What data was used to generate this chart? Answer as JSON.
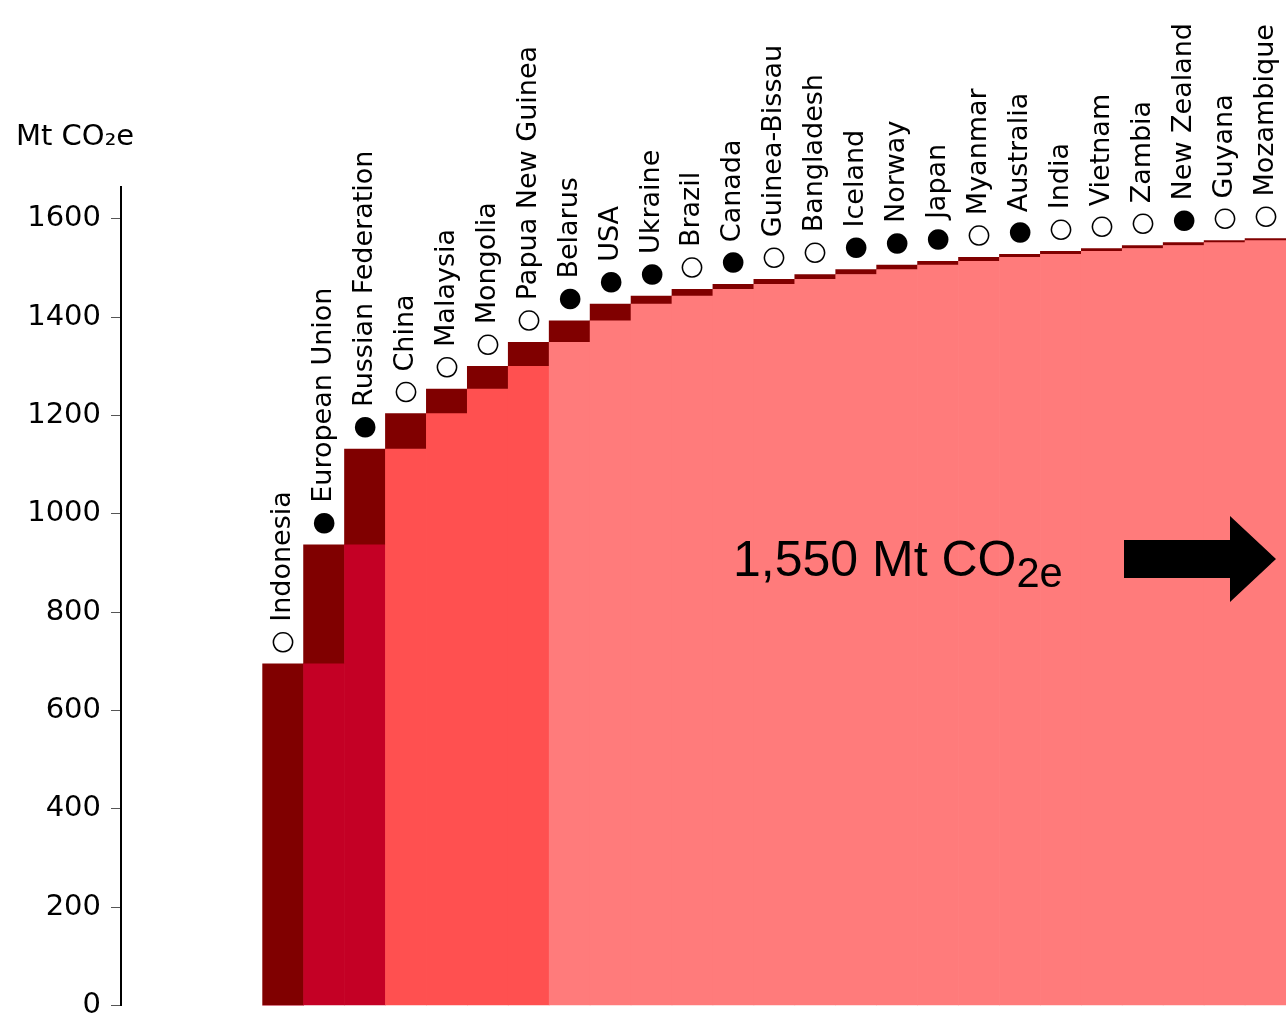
{
  "chart_data": {
    "type": "bar",
    "stacked": true,
    "ylabel": "Mt CO₂e",
    "categories": [
      "○ Indonesia",
      "● European Union",
      "● Russian Federation",
      "○ China",
      "○ Malaysia",
      "○ Mongolia",
      "○ Papua New Guinea",
      "● Belarus",
      "● USA",
      "● Ukraine",
      "○ Brazil",
      "● Canada",
      "○ Guinea-Bissau",
      "○ Bangladesh",
      "● Iceland",
      "● Norway",
      "● Japan",
      "○ Myanmar",
      "● Australia",
      "○ India",
      "○ Vietnam",
      "○ Zambia",
      "● New Zealand",
      "○ Guyana",
      "○ Mozambique"
    ],
    "series": [
      {
        "colors": [
          "#c40025",
          "#c40025",
          "#c40025",
          "#ff5050",
          "#ff5050",
          "#ff5050",
          "#ff5050",
          "#ff7b7b",
          "#ff7b7b",
          "#ff7b7b",
          "#ff7b7b",
          "#ff7b7b",
          "#ff7b7b",
          "#ff7b7b",
          "#ff7b7b",
          "#ff7b7b",
          "#ff7b7b",
          "#ff7b7b",
          "#ff7b7b",
          "#ff7b7b",
          "#ff7b7b",
          "#ff7b7b",
          "#ff7b7b",
          "#ff7b7b",
          "#ff7b7b"
        ],
        "values": [
          0,
          695,
          937,
          1132,
          1204,
          1254,
          1300,
          1349,
          1393,
          1427,
          1443,
          1457,
          1467,
          1477,
          1487,
          1497,
          1506,
          1514,
          1522,
          1528,
          1534,
          1540,
          1546,
          1552,
          1556
        ]
      },
      {
        "color": "#800000",
        "values": [
          695,
          242,
          195,
          72,
          50,
          46,
          49,
          44,
          34,
          16,
          14,
          10,
          10,
          10,
          10,
          9,
          8,
          8,
          6,
          6,
          6,
          6,
          6,
          4,
          4
        ]
      }
    ],
    "ylim": [
      0,
      1665
    ],
    "yticks": [
      0,
      200,
      400,
      600,
      800,
      1000,
      1200,
      1400,
      1600
    ],
    "annotations": [
      "1,550 Mt CO$_{2e}$"
    ]
  }
}
